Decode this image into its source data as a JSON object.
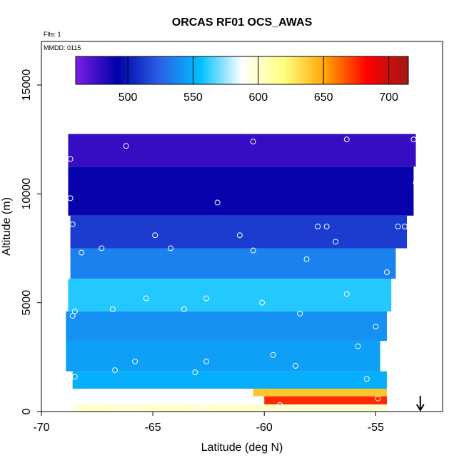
{
  "chart_data": {
    "type": "heatmap",
    "title": "ORCAS RF01 OCS_AWAS",
    "annotations": [
      "Flts: 1",
      "MMDD: 0115"
    ],
    "xlabel": "Latitude (deg N)",
    "ylabel": "Altitude (m)",
    "xlim": [
      -70,
      -52
    ],
    "ylim": [
      0,
      17000
    ],
    "x_ticks": [
      -70,
      -65,
      -60,
      -55
    ],
    "x_tick_labels": [
      "-70",
      "-65",
      "-60",
      "-55"
    ],
    "y_ticks": [
      0,
      5000,
      10000,
      15000
    ],
    "y_tick_labels": [
      "0",
      "5000",
      "10000",
      "15000"
    ],
    "colorbar": {
      "range": [
        460,
        715
      ],
      "ticks": [
        500,
        550,
        600,
        650,
        700
      ],
      "tick_labels": [
        "500",
        "550",
        "600",
        "650",
        "700"
      ],
      "colors": [
        "#7b1fe6",
        "#0000a8",
        "#2a5fe6",
        "#00bfff",
        "#ffffff",
        "#ffff80",
        "#ffa500",
        "#ff0000",
        "#a01818"
      ]
    },
    "grid": false,
    "field_value_rows": [
      {
        "alt": 12500,
        "lat_min": -68.8,
        "lat_max": -53.2,
        "value": 478
      },
      {
        "alt": 10000,
        "lat_min": -68.8,
        "lat_max": -53.3,
        "value": 490
      },
      {
        "alt": 8000,
        "lat_min": -68.7,
        "lat_max": -53.6,
        "value": 512
      },
      {
        "alt": 7000,
        "lat_min": -68.7,
        "lat_max": -54.1,
        "value": 535
      },
      {
        "alt": 5200,
        "lat_min": -68.8,
        "lat_max": -54.3,
        "value": 560
      },
      {
        "alt": 4000,
        "lat_min": -68.9,
        "lat_max": -54.5,
        "value": 540
      },
      {
        "alt": 2500,
        "lat_min": -68.9,
        "lat_max": -54.8,
        "value": 545
      },
      {
        "alt": 1200,
        "lat_min": -68.6,
        "lat_max": -54.5,
        "value": 550
      },
      {
        "alt": 900,
        "lat_min": -60.5,
        "lat_max": -54.5,
        "value": 640
      },
      {
        "alt": 500,
        "lat_min": -60.0,
        "lat_max": -54.5,
        "value": 675
      },
      {
        "alt": 150,
        "lat_min": -68.6,
        "lat_max": -54.5,
        "value": 600
      }
    ],
    "sample_points": [
      {
        "lat": -68.7,
        "alt": 11600
      },
      {
        "lat": -66.2,
        "alt": 12200
      },
      {
        "lat": -60.5,
        "alt": 12400
      },
      {
        "lat": -56.3,
        "alt": 12500
      },
      {
        "lat": -53.3,
        "alt": 12500
      },
      {
        "lat": -68.7,
        "alt": 9800
      },
      {
        "lat": -62.1,
        "alt": 9600
      },
      {
        "lat": -53.2,
        "alt": 10500
      },
      {
        "lat": -53.0,
        "alt": 10100
      },
      {
        "lat": -68.6,
        "alt": 8600
      },
      {
        "lat": -64.9,
        "alt": 8100
      },
      {
        "lat": -61.1,
        "alt": 8100
      },
      {
        "lat": -57.6,
        "alt": 8500
      },
      {
        "lat": -57.2,
        "alt": 8500
      },
      {
        "lat": -54.0,
        "alt": 8500
      },
      {
        "lat": -53.7,
        "alt": 8500
      },
      {
        "lat": -68.2,
        "alt": 7300
      },
      {
        "lat": -67.3,
        "alt": 7500
      },
      {
        "lat": -64.2,
        "alt": 7500
      },
      {
        "lat": -60.5,
        "alt": 7400
      },
      {
        "lat": -56.8,
        "alt": 7800
      },
      {
        "lat": -58.1,
        "alt": 7000
      },
      {
        "lat": -68.9,
        "alt": 6100
      },
      {
        "lat": -54.5,
        "alt": 6400
      },
      {
        "lat": -65.3,
        "alt": 5200
      },
      {
        "lat": -62.6,
        "alt": 5200
      },
      {
        "lat": -60.1,
        "alt": 5000
      },
      {
        "lat": -56.3,
        "alt": 5400
      },
      {
        "lat": -68.5,
        "alt": 4600
      },
      {
        "lat": -68.6,
        "alt": 4400
      },
      {
        "lat": -66.8,
        "alt": 4700
      },
      {
        "lat": -63.6,
        "alt": 4700
      },
      {
        "lat": -58.4,
        "alt": 4500
      },
      {
        "lat": -55.0,
        "alt": 3900
      },
      {
        "lat": -55.8,
        "alt": 3000
      },
      {
        "lat": -59.6,
        "alt": 2600
      },
      {
        "lat": -58.6,
        "alt": 2100
      },
      {
        "lat": -62.6,
        "alt": 2300
      },
      {
        "lat": -65.8,
        "alt": 2300
      },
      {
        "lat": -66.7,
        "alt": 1900
      },
      {
        "lat": -63.1,
        "alt": 1800
      },
      {
        "lat": -68.5,
        "alt": 1600
      },
      {
        "lat": -55.4,
        "alt": 1500
      },
      {
        "lat": -54.9,
        "alt": 600
      },
      {
        "lat": -59.3,
        "alt": 300
      },
      {
        "lat": -62.8,
        "alt": 300
      },
      {
        "lat": -62.7,
        "alt": 300
      },
      {
        "lat": -68.6,
        "alt": 300
      },
      {
        "lat": -66.1,
        "alt": 150
      },
      {
        "lat": -54.6,
        "alt": 150
      },
      {
        "lat": -68.5,
        "alt": 150
      }
    ],
    "arrow_marker": {
      "lat": -53.0,
      "direction": "down"
    }
  }
}
